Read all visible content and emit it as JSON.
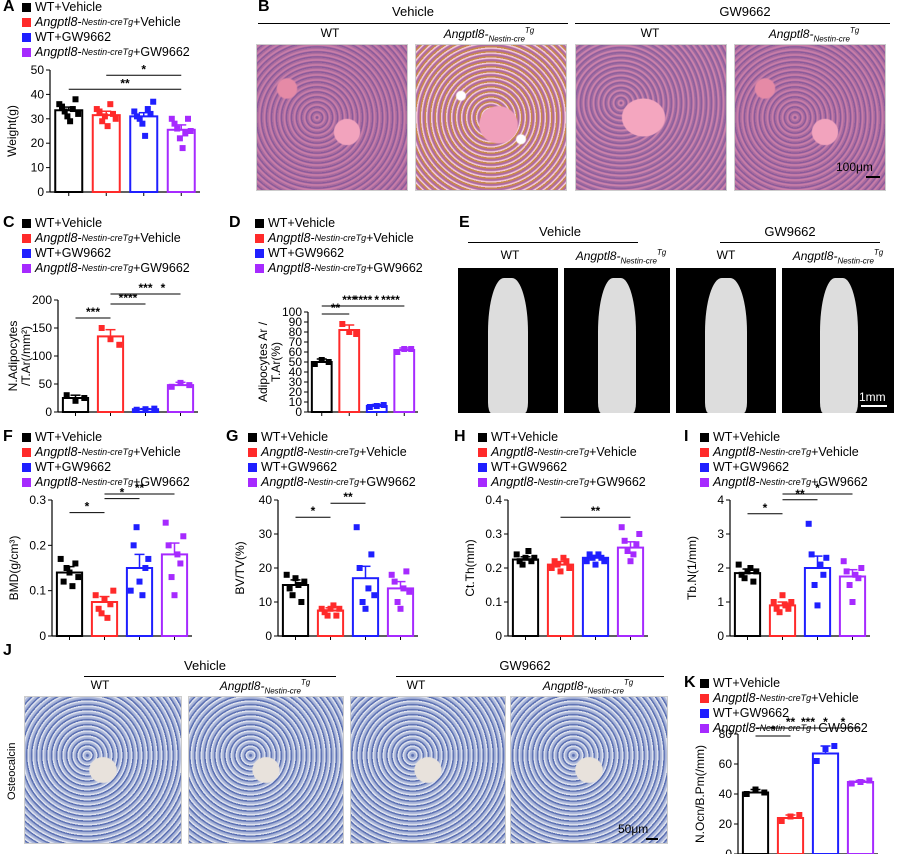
{
  "letters": {
    "A": "A",
    "B": "B",
    "C": "C",
    "D": "D",
    "E": "E",
    "F": "F",
    "G": "G",
    "H": "H",
    "I": "I",
    "J": "J",
    "K": "K"
  },
  "legend": {
    "wt_vehicle": "WT+Vehicle",
    "tg_prefix": "Angptl8-",
    "tg_sub": "Nestin-cre",
    "tg_sup": "Tg",
    "tg_vehicle_suffix": "+Vehicle",
    "wt_gw": "WT+GW9662",
    "tg_gw_suffix": "+GW9662"
  },
  "colors": {
    "wt_vehicle": "#000000",
    "tg_vehicle": "#ff2a2a",
    "wt_gw": "#1f1fff",
    "tg_gw": "#a62aff"
  },
  "groups": {
    "vehicle": "Vehicle",
    "gw": "GW9662",
    "wt": "WT",
    "tg_label": "Angptl8-",
    "tg_sub": "Nestin-cre",
    "tg_sup": "Tg"
  },
  "scales": {
    "b": "100μm",
    "e": "1mm",
    "j": "50μm"
  },
  "j_side_label": "Osteocalcin",
  "chart_data": [
    {
      "panel": "A",
      "type": "bar",
      "ylabel": "Weight(g)",
      "ylim": [
        0,
        50
      ],
      "yticks": [
        0,
        10,
        20,
        30,
        40,
        50
      ],
      "values": [
        33.5,
        31.5,
        31,
        25.5
      ],
      "errors": [
        1.3,
        1.6,
        1.5,
        2
      ],
      "points": [
        [
          36,
          35,
          33,
          31,
          29,
          34,
          38,
          32
        ],
        [
          34,
          33,
          29,
          31,
          27,
          36,
          32,
          30
        ],
        [
          33,
          31,
          30,
          28,
          23,
          34,
          32,
          37
        ],
        [
          30,
          28,
          26,
          22,
          18,
          24,
          30,
          25
        ]
      ],
      "sig": [
        {
          "from": 0,
          "to": 3,
          "label": "**"
        },
        {
          "from": 1,
          "to": 3,
          "label": "*"
        }
      ]
    },
    {
      "panel": "C",
      "type": "bar",
      "ylabel": "N.Adipocytes\n/T.Ar(/mm²)",
      "ylim": [
        0,
        200
      ],
      "yticks": [
        0,
        50,
        100,
        150,
        200
      ],
      "values": [
        25,
        135,
        5,
        48
      ],
      "errors": [
        5,
        12,
        1,
        5
      ],
      "points": [
        [
          30,
          20,
          25
        ],
        [
          150,
          130,
          120
        ],
        [
          4,
          5,
          6
        ],
        [
          45,
          52,
          48
        ]
      ],
      "sig": [
        {
          "from": 0,
          "to": 1,
          "label": "***"
        },
        {
          "from": 1,
          "to": 2,
          "label": "****"
        },
        {
          "from": 1,
          "to": 3,
          "label": "***"
        },
        {
          "from": 2,
          "to": 3,
          "label": "*"
        }
      ]
    },
    {
      "panel": "D",
      "type": "bar",
      "ylabel": "Adipocytes Ar /\nT.Ar(%)",
      "ylim": [
        0,
        100
      ],
      "yticks": [
        0,
        10,
        20,
        30,
        40,
        50,
        60,
        70,
        80,
        90,
        100
      ],
      "values": [
        50,
        82,
        6,
        62
      ],
      "errors": [
        3,
        5,
        1.5,
        2
      ],
      "points": [
        [
          48,
          52,
          50
        ],
        [
          88,
          80,
          78
        ],
        [
          5,
          6,
          7
        ],
        [
          60,
          63,
          63
        ]
      ],
      "sig": [
        {
          "from": 0,
          "to": 1,
          "label": "**"
        },
        {
          "from": 1,
          "to": 2,
          "label": "****"
        },
        {
          "from": 0,
          "to": 2,
          "label": "***"
        },
        {
          "from": 1,
          "to": 3,
          "label": "*"
        },
        {
          "from": 2,
          "to": 3,
          "label": "****"
        }
      ]
    },
    {
      "panel": "F",
      "type": "bar",
      "ylabel": "BMD(g/cm³)",
      "ylim": [
        0,
        0.3
      ],
      "yticks": [
        0,
        0.1,
        0.2,
        0.3
      ],
      "values": [
        0.14,
        0.075,
        0.15,
        0.18
      ],
      "errors": [
        0.013,
        0.012,
        0.03,
        0.025
      ],
      "points": [
        [
          0.17,
          0.12,
          0.15,
          0.14,
          0.11,
          0.16,
          0.13
        ],
        [
          0.09,
          0.06,
          0.05,
          0.08,
          0.04,
          0.07,
          0.1
        ],
        [
          0.1,
          0.2,
          0.24,
          0.12,
          0.09,
          0.15,
          0.17
        ],
        [
          0.25,
          0.2,
          0.13,
          0.09,
          0.18,
          0.16,
          0.22
        ]
      ],
      "sig": [
        {
          "from": 0,
          "to": 1,
          "label": "*"
        },
        {
          "from": 1,
          "to": 2,
          "label": "*"
        },
        {
          "from": 1,
          "to": 3,
          "label": "**"
        }
      ]
    },
    {
      "panel": "G",
      "type": "bar",
      "ylabel": "BV/TV(%)",
      "ylim": [
        0,
        40
      ],
      "yticks": [
        0,
        10,
        20,
        30,
        40
      ],
      "values": [
        15,
        7.5,
        17,
        14
      ],
      "errors": [
        1.5,
        0.8,
        3.5,
        2
      ],
      "points": [
        [
          18,
          14,
          12,
          17,
          15,
          10,
          16
        ],
        [
          8,
          7,
          6,
          8,
          9,
          6,
          8
        ],
        [
          32,
          20,
          10,
          8,
          14,
          24,
          12
        ],
        [
          18,
          16,
          10,
          8,
          14,
          19,
          13
        ]
      ],
      "sig": [
        {
          "from": 0,
          "to": 1,
          "label": "*"
        },
        {
          "from": 1,
          "to": 2,
          "label": "**"
        }
      ]
    },
    {
      "panel": "H",
      "type": "bar",
      "ylabel": "Ct.Th(mm)",
      "ylim": [
        0,
        0.4
      ],
      "yticks": [
        0,
        0.1,
        0.2,
        0.3,
        0.4
      ],
      "values": [
        0.225,
        0.21,
        0.23,
        0.26
      ],
      "errors": [
        0.008,
        0.009,
        0.007,
        0.017
      ],
      "points": [
        [
          0.24,
          0.22,
          0.21,
          0.23,
          0.25,
          0.22,
          0.23
        ],
        [
          0.2,
          0.22,
          0.21,
          0.19,
          0.23,
          0.22,
          0.2
        ],
        [
          0.22,
          0.24,
          0.23,
          0.21,
          0.24,
          0.23,
          0.22
        ],
        [
          0.32,
          0.28,
          0.25,
          0.22,
          0.24,
          0.27,
          0.3
        ]
      ],
      "sig": [
        {
          "from": 1,
          "to": 3,
          "label": "**"
        }
      ]
    },
    {
      "panel": "I",
      "type": "bar",
      "ylabel": "Tb.N(1/mm)",
      "ylim": [
        0,
        4
      ],
      "yticks": [
        0,
        1,
        2,
        3,
        4
      ],
      "values": [
        1.85,
        0.9,
        2,
        1.75
      ],
      "errors": [
        0.12,
        0.1,
        0.35,
        0.2
      ],
      "points": [
        [
          2.1,
          1.8,
          1.7,
          1.9,
          2,
          1.6,
          1.9
        ],
        [
          1,
          0.8,
          0.7,
          1.2,
          0.9,
          0.8,
          1
        ],
        [
          3.3,
          2.4,
          1.5,
          0.9,
          2.1,
          1.8,
          2.3
        ],
        [
          2.2,
          1.9,
          1.5,
          1,
          1.8,
          1.7,
          2
        ]
      ],
      "sig": [
        {
          "from": 0,
          "to": 1,
          "label": "*"
        },
        {
          "from": 1,
          "to": 2,
          "label": "**"
        },
        {
          "from": 1,
          "to": 3,
          "label": "*"
        }
      ]
    },
    {
      "panel": "K",
      "type": "bar",
      "ylabel": "N.Ocn/B.Pm(/mm)",
      "ylim": [
        0,
        80
      ],
      "yticks": [
        0,
        20,
        40,
        60,
        80
      ],
      "values": [
        41,
        24,
        67,
        48
      ],
      "errors": [
        2,
        2,
        5,
        1
      ],
      "points": [
        [
          40,
          43,
          41
        ],
        [
          22,
          25,
          26
        ],
        [
          62,
          70,
          72
        ],
        [
          47,
          48,
          49
        ]
      ],
      "sig": [
        {
          "from": 0,
          "to": 1,
          "label": "*"
        },
        {
          "from": 1,
          "to": 2,
          "label": "***"
        },
        {
          "from": 2,
          "to": 3,
          "label": "*"
        },
        {
          "from": 0,
          "to": 2,
          "label": "**"
        },
        {
          "from": 1,
          "to": 3,
          "label": "*"
        }
      ]
    }
  ]
}
